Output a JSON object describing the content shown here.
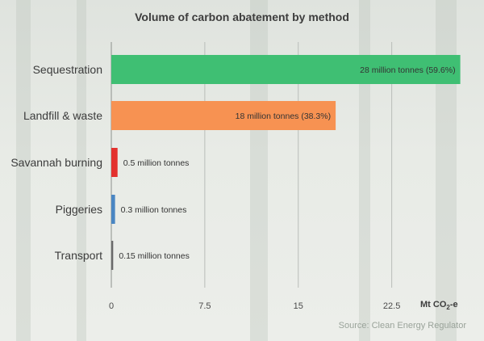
{
  "chart_data": {
    "type": "bar",
    "orientation": "horizontal",
    "title": "Volume of carbon abatement by method",
    "categories": [
      "Sequestration",
      "Landfill & waste",
      "Savannah burning",
      "Piggeries",
      "Transport"
    ],
    "values": [
      28,
      18,
      0.5,
      0.3,
      0.15
    ],
    "data_labels": [
      "28 million tonnes (59.6%)",
      "18 million tonnes (38.3%)",
      "0.5 million tonnes",
      "0.3 million tonnes",
      "0.15 million tonnes"
    ],
    "colors": [
      "#3fbf73",
      "#f79252",
      "#e3312e",
      "#4a86c3",
      "#6a6a6a"
    ],
    "xlim": [
      0,
      28
    ],
    "xticks": [
      "0",
      "7.5",
      "15",
      "22.5"
    ],
    "xtick_values": [
      0,
      7.5,
      15,
      22.5
    ],
    "unit_label": "Mt CO",
    "unit_sub": "2",
    "unit_suffix": "-e",
    "grid": true
  },
  "source": "Source: Clean Energy Regulator"
}
